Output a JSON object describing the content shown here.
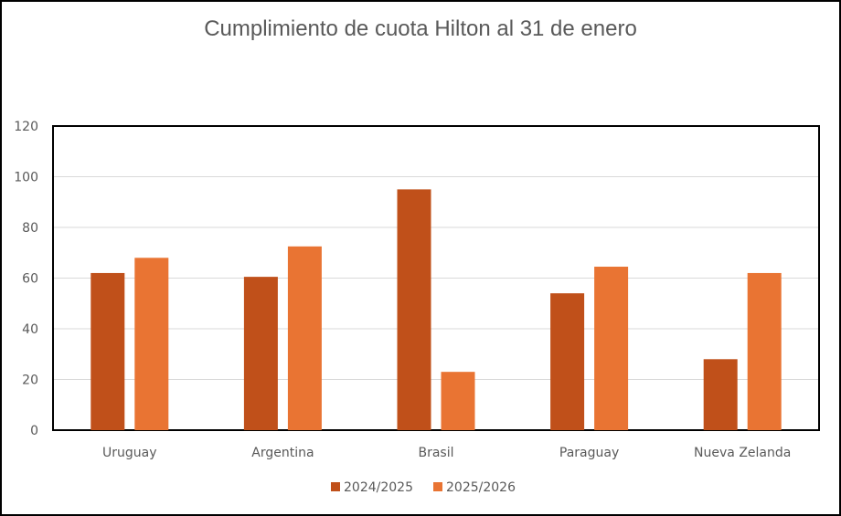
{
  "chart_data": {
    "type": "bar",
    "title": "Cumplimiento  de cuota Hilton  al 31 de enero",
    "categories": [
      "Uruguay",
      "Argentina",
      "Brasil",
      "Paraguay",
      "Nueva Zelanda"
    ],
    "series": [
      {
        "name": "2024/2025",
        "values": [
          62,
          60.5,
          95,
          54,
          28
        ],
        "color": "#c0501a"
      },
      {
        "name": "2025/2026",
        "values": [
          68,
          72.5,
          23,
          64.5,
          62
        ],
        "color": "#e97433"
      }
    ],
    "ylim": [
      0,
      120
    ],
    "yticks": [
      0,
      20,
      40,
      60,
      80,
      100,
      120
    ],
    "grid": true,
    "legend": "bottom"
  }
}
